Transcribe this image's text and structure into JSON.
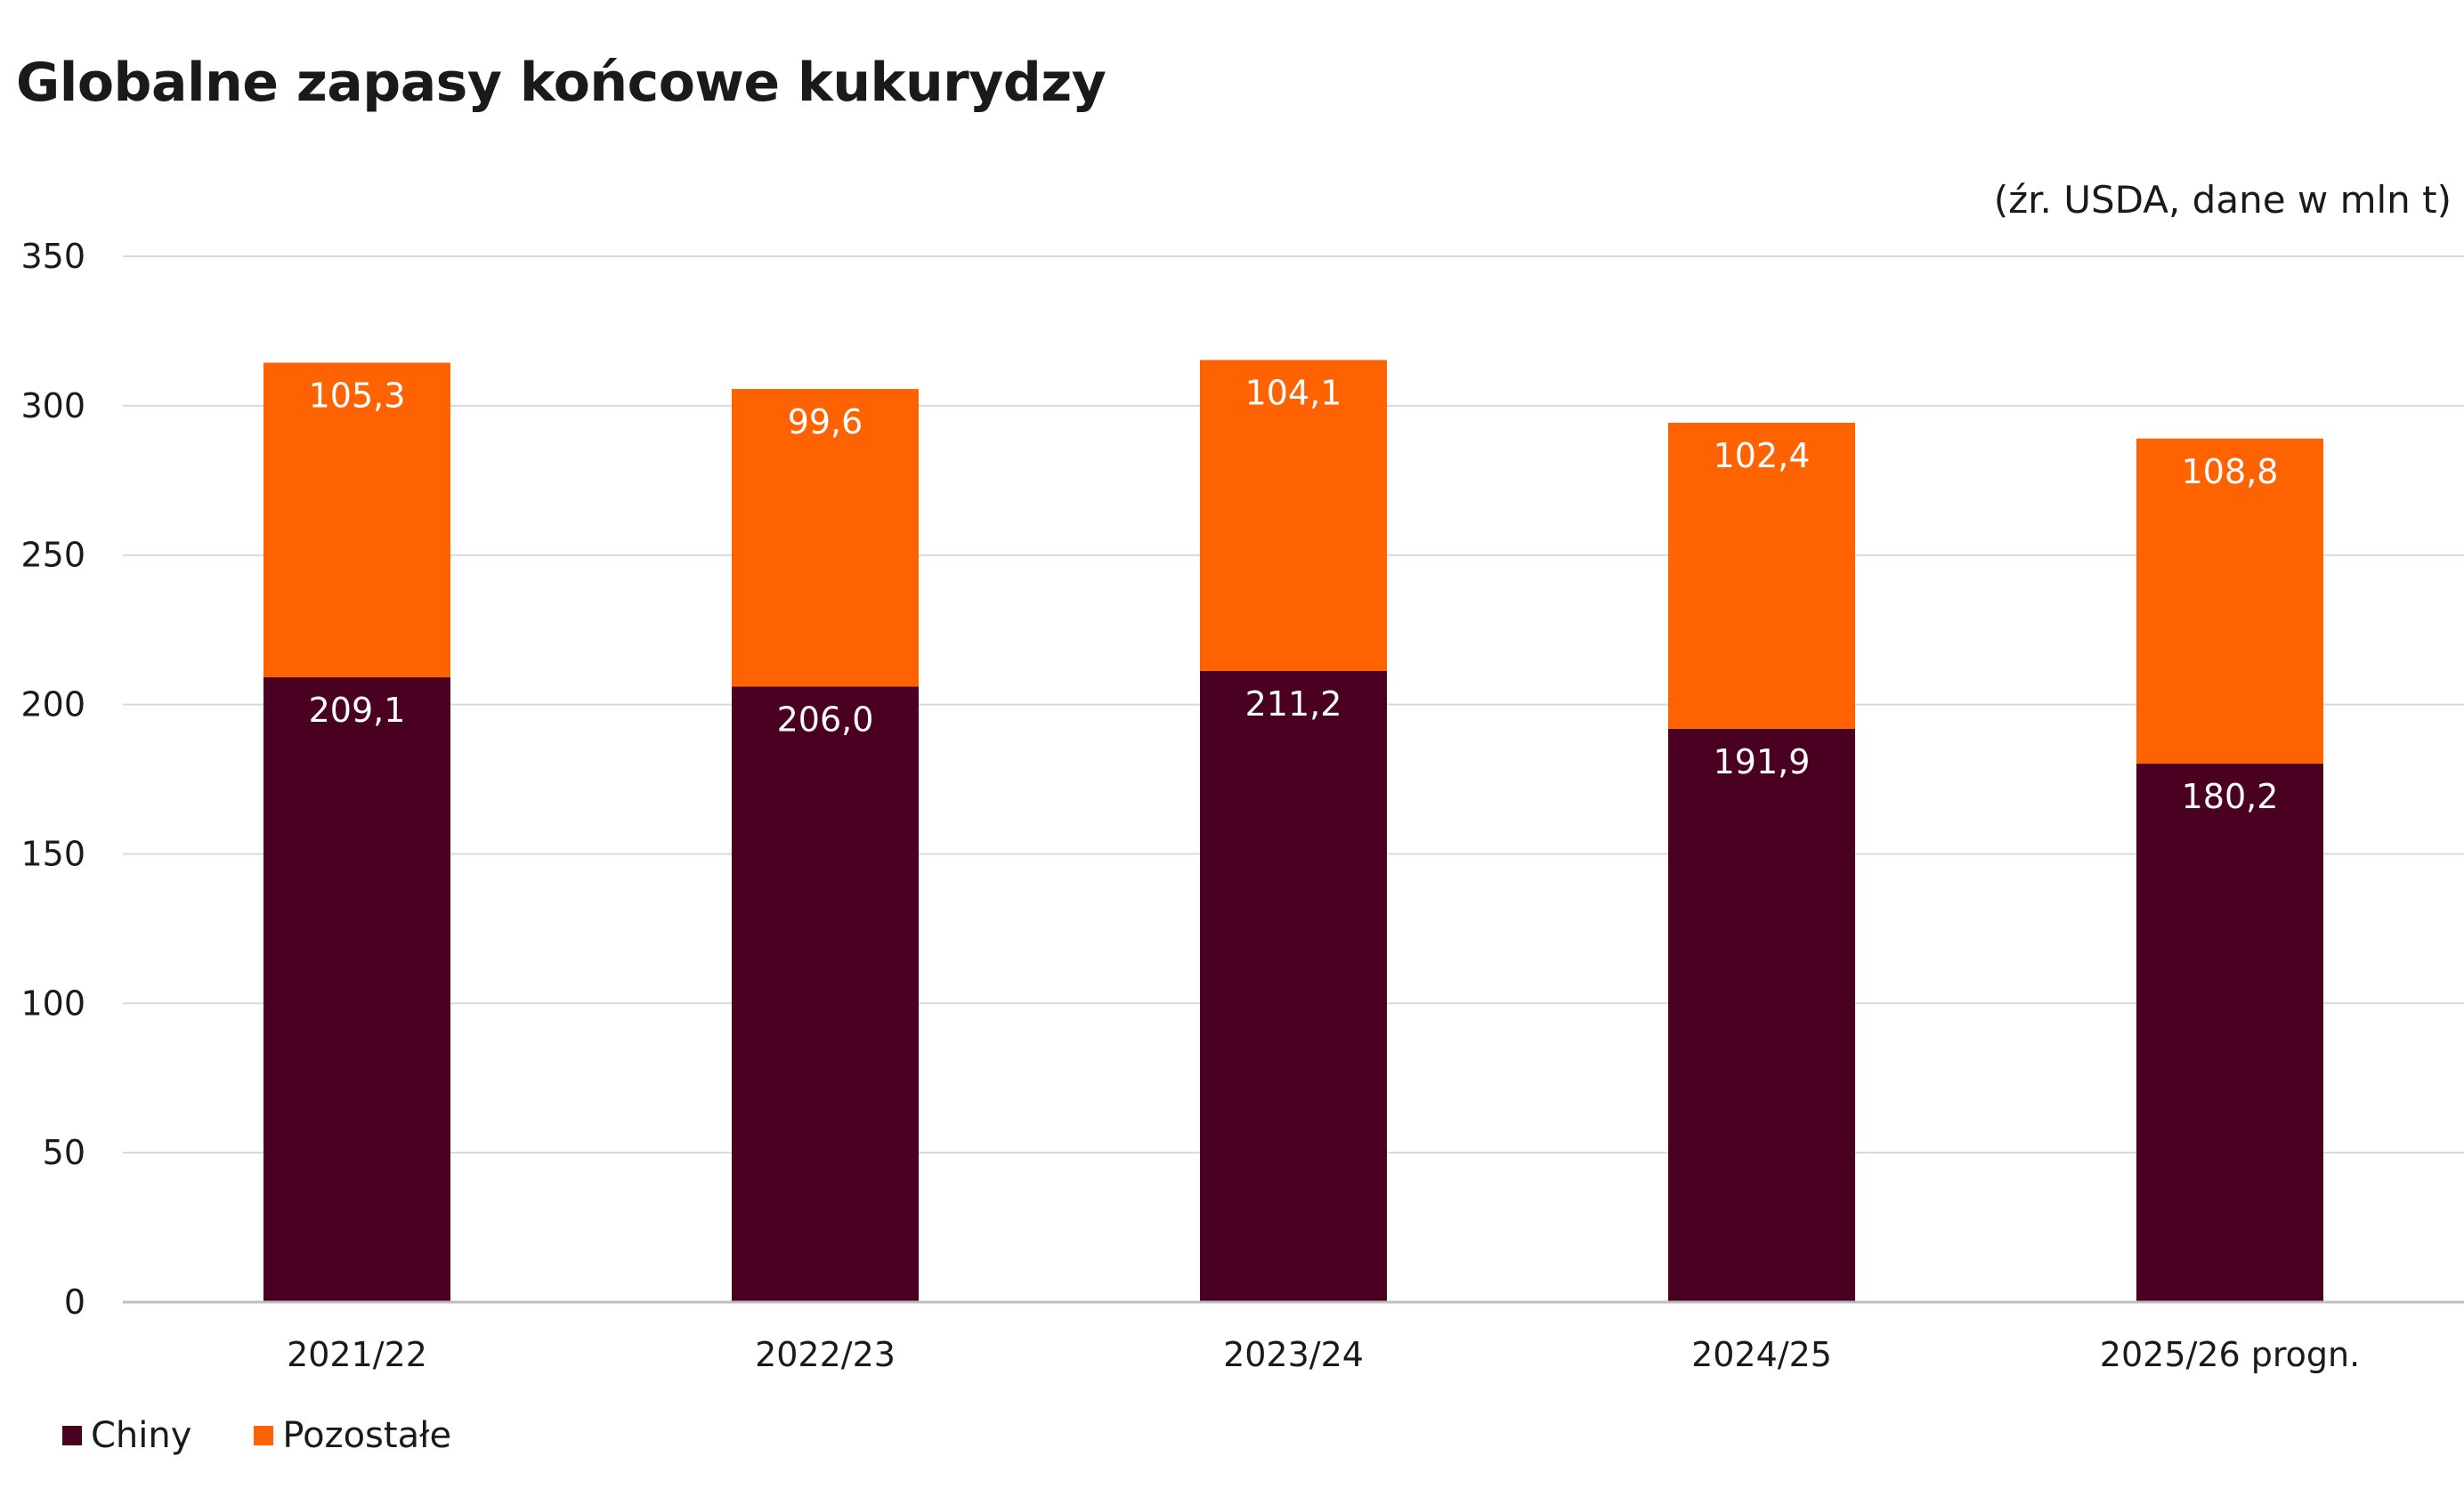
{
  "title": "Globalne zapasy końcowe kukurydzy",
  "source_note": "(źr. USDA, dane w mln t)",
  "colors": {
    "chiny": "#4a0020",
    "pozostale": "#ff6200",
    "grid": "#d9d9d9",
    "axis": "#bfbfbf"
  },
  "legend": [
    {
      "label": "Chiny",
      "color": "#4a0020"
    },
    {
      "label": "Pozostałe",
      "color": "#ff6200"
    }
  ],
  "chart_data": {
    "type": "bar",
    "stacked": true,
    "title": "Globalne zapasy końcowe kukurydzy",
    "subtitle": "(źr. USDA, dane w mln t)",
    "categories": [
      "2021/22",
      "2022/23",
      "2023/24",
      "2024/25",
      "2025/26 progn."
    ],
    "series": [
      {
        "name": "Chiny",
        "values": [
          209.1,
          206.0,
          211.2,
          191.9,
          180.2
        ],
        "labels": [
          "209,1",
          "206,0",
          "211,2",
          "191,9",
          "180,2"
        ],
        "color": "#4a0020"
      },
      {
        "name": "Pozostałe",
        "values": [
          105.3,
          99.6,
          104.1,
          102.4,
          108.8
        ],
        "labels": [
          "105,3",
          "99,6",
          "104,1",
          "102,4",
          "108,8"
        ],
        "color": "#ff6200"
      }
    ],
    "ylim": [
      0,
      350
    ],
    "yticks": [
      0,
      50,
      100,
      150,
      200,
      250,
      300,
      350
    ],
    "grid": true,
    "legend_position": "bottom-left"
  }
}
